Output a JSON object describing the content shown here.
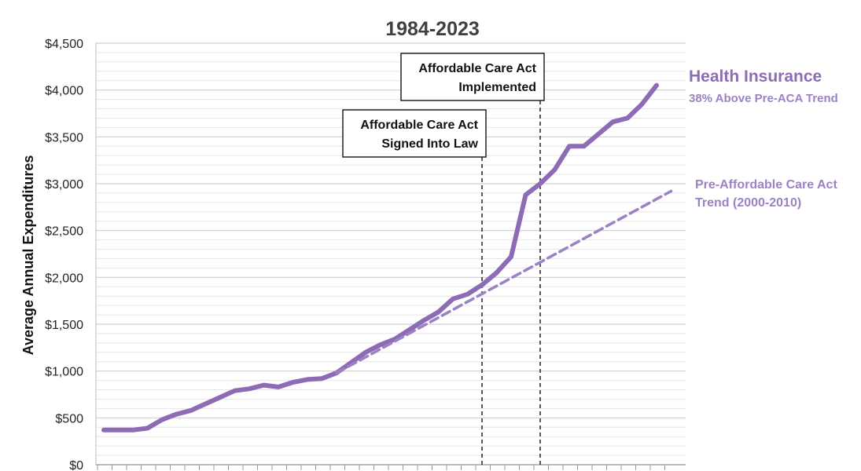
{
  "chart_data": {
    "type": "line",
    "subtitle": "1984-2023",
    "ylabel": "Average Annual Expenditures",
    "xlabel": "",
    "ylim": [
      0,
      4500
    ],
    "yticks": [
      0,
      500,
      1000,
      1500,
      2000,
      2500,
      3000,
      3500,
      4000,
      4500
    ],
    "ytick_labels": [
      "$0",
      "$500",
      "$1,000",
      "$1,500",
      "$2,000",
      "$2,500",
      "$3,000",
      "$3,500",
      "$4,000",
      "$4,500"
    ],
    "x": [
      1984,
      1985,
      1986,
      1987,
      1988,
      1989,
      1990,
      1991,
      1992,
      1993,
      1994,
      1995,
      1996,
      1997,
      1998,
      1999,
      2000,
      2001,
      2002,
      2003,
      2004,
      2005,
      2006,
      2007,
      2008,
      2009,
      2010,
      2011,
      2012,
      2013,
      2014,
      2015,
      2016,
      2017,
      2018,
      2019,
      2020,
      2021,
      2022,
      2023
    ],
    "xlim": [
      1984,
      2023
    ],
    "grid": true,
    "series": [
      {
        "name": "Health Insurance",
        "color": "#8e6bb5",
        "style": "solid",
        "values": [
          370,
          370,
          370,
          390,
          480,
          540,
          580,
          650,
          720,
          790,
          810,
          850,
          830,
          880,
          910,
          920,
          980,
          1090,
          1200,
          1280,
          1340,
          1440,
          1540,
          1630,
          1770,
          1820,
          1920,
          2050,
          2220,
          2880,
          3000,
          3150,
          3400,
          3400,
          3530,
          3660,
          3700,
          3850,
          4050,
          null
        ]
      },
      {
        "name": "Pre-Affordable Care Act Trend (2000-2010)",
        "color": "#9b82c4",
        "style": "dashed",
        "x": [
          2000,
          2023
        ],
        "values": [
          980,
          2920
        ]
      }
    ],
    "annotations": [
      {
        "x": 2010,
        "lines": [
          "Affordable Care Act",
          "Signed Into Law"
        ]
      },
      {
        "x": 2014,
        "lines": [
          "Affordable Care Act",
          "Implemented"
        ]
      }
    ],
    "series_labels": {
      "health_title": "Health Insurance",
      "health_sub": "38% Above Pre-ACA Trend",
      "trend_line1": "Pre-Affordable Care Act",
      "trend_line2": "Trend (2000-2010)"
    }
  }
}
